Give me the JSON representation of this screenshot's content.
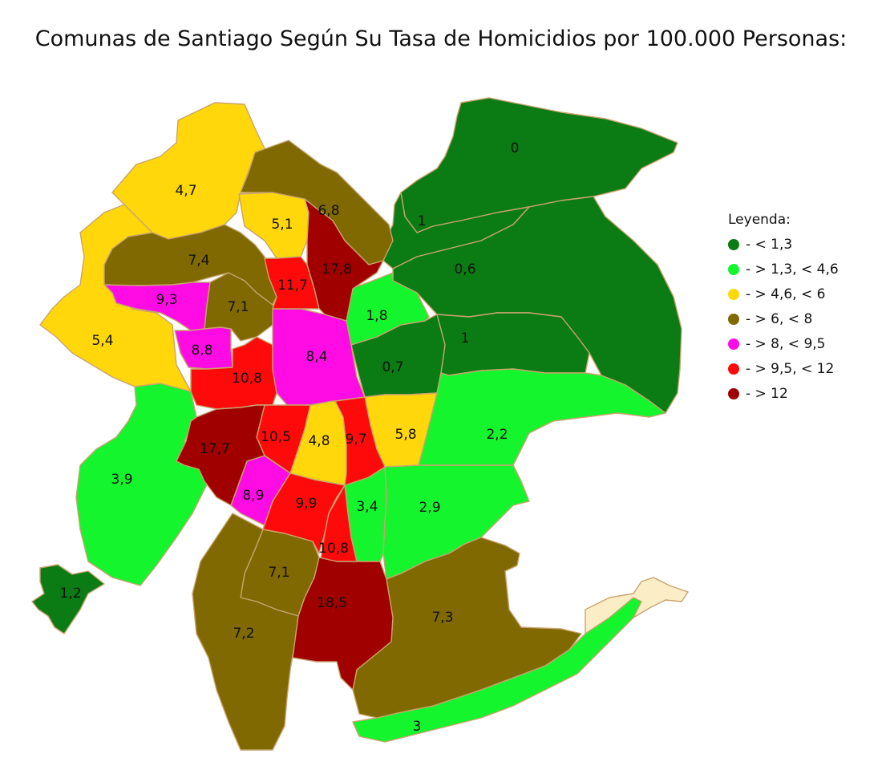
{
  "title": "Comunas de Santiago Según Su Tasa de Homicidios por 100.000 Personas:",
  "legend": {
    "title": "Leyenda:",
    "items": [
      {
        "label": "- < 1,3",
        "color": "#0b7b14"
      },
      {
        "label": "- > 1,3, < 4,6",
        "color": "#14f52e"
      },
      {
        "label": "- > 4,6, < 6",
        "color": "#ffd70a"
      },
      {
        "label": "- > 6, < 8",
        "color": "#7f6900"
      },
      {
        "label": "- > 8, < 9,5",
        "color": "#ff0be4"
      },
      {
        "label": "- > 9,5, < 12",
        "color": "#ff0a0a"
      },
      {
        "label": "- > 12",
        "color": "#a00000"
      }
    ]
  },
  "regions": [
    {
      "id": "far-northeast",
      "value": "0",
      "category": 0
    },
    {
      "id": "northeast-b",
      "value": "1",
      "category": 0
    },
    {
      "id": "east-large",
      "value": "0,6",
      "category": 0
    },
    {
      "id": "east-mid",
      "value": "1",
      "category": 0
    },
    {
      "id": "center-east",
      "value": "0,7",
      "category": 0
    },
    {
      "id": "west-enclave",
      "value": "1,2",
      "category": 0
    },
    {
      "id": "central-northeast",
      "value": "1,8",
      "category": 1
    },
    {
      "id": "east-south",
      "value": "2,2",
      "category": 1
    },
    {
      "id": "south-east-mid",
      "value": "2,9",
      "category": 1
    },
    {
      "id": "south-center-strip",
      "value": "3,4",
      "category": 1
    },
    {
      "id": "west-big",
      "value": "3,9",
      "category": 1
    },
    {
      "id": "far-south-strip",
      "value": "3",
      "category": 1
    },
    {
      "id": "north-west",
      "value": "4,7",
      "category": 2
    },
    {
      "id": "north-center",
      "value": "5,1",
      "category": 2
    },
    {
      "id": "west-north",
      "value": "5,4",
      "category": 2
    },
    {
      "id": "center-south",
      "value": "4,8",
      "category": 2
    },
    {
      "id": "center-south-east",
      "value": "5,8",
      "category": 2
    },
    {
      "id": "north-ridge",
      "value": "6,8",
      "category": 3
    },
    {
      "id": "north-west-mid",
      "value": "7,4",
      "category": 3
    },
    {
      "id": "center-north-west",
      "value": "7,1",
      "category": 3
    },
    {
      "id": "south-mid",
      "value": "7,1",
      "category": 3
    },
    {
      "id": "south-west",
      "value": "7,2",
      "category": 3
    },
    {
      "id": "south-east",
      "value": "7,3",
      "category": 3
    },
    {
      "id": "north-west-pink",
      "value": "9,3",
      "category": 4
    },
    {
      "id": "west-center-pink",
      "value": "8,8",
      "category": 4
    },
    {
      "id": "center",
      "value": "8,4",
      "category": 4
    },
    {
      "id": "south-west-pink",
      "value": "8,9",
      "category": 4
    },
    {
      "id": "north-red",
      "value": "11,7",
      "category": 5
    },
    {
      "id": "west-red",
      "value": "10,8",
      "category": 5
    },
    {
      "id": "center-south-red",
      "value": "10,5",
      "category": 5
    },
    {
      "id": "center-south-red-east",
      "value": "9,7",
      "category": 5
    },
    {
      "id": "south-red-mid",
      "value": "9,9",
      "category": 5
    },
    {
      "id": "south-red-strip",
      "value": "10,8",
      "category": 5
    },
    {
      "id": "north-darkred",
      "value": "17,8",
      "category": 6
    },
    {
      "id": "west-darkred",
      "value": "17,7",
      "category": 6
    },
    {
      "id": "south-darkred",
      "value": "18,5",
      "category": 6
    }
  ],
  "unclassified_color": "#fbeec6"
}
